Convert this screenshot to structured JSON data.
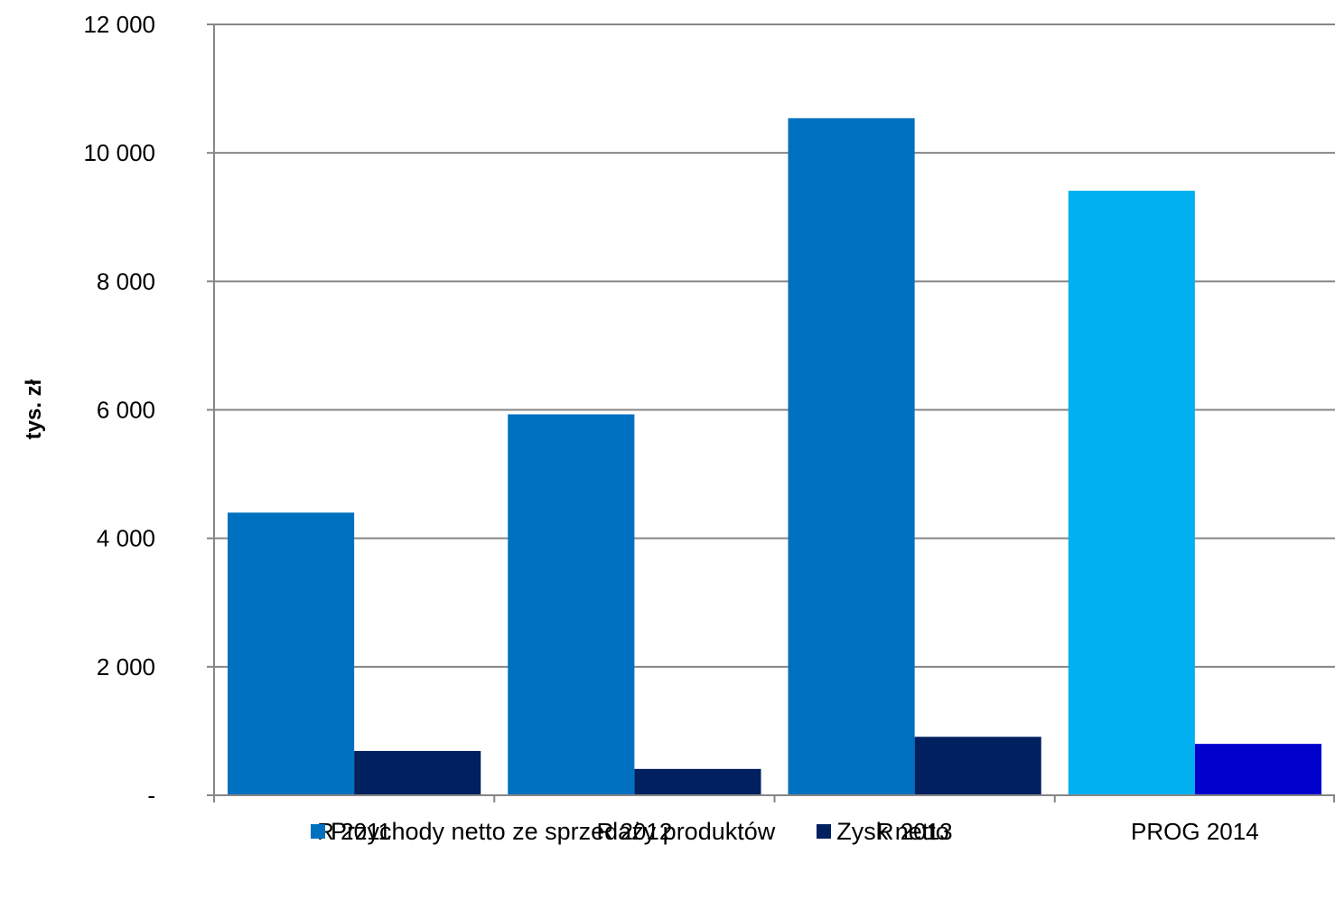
{
  "chart_data": {
    "type": "bar",
    "categories": [
      "R 2011",
      "R 2012",
      "R 2013",
      "PROG 2014"
    ],
    "series": [
      {
        "name": "Przychody netto ze sprzedaży produktów",
        "values": [
          4400,
          5930,
          10540,
          9410
        ],
        "color": "#0070C0",
        "point_colors": [
          "#0070C0",
          "#0070C0",
          "#0070C0",
          "#00B0F0"
        ]
      },
      {
        "name": "Zysk netto",
        "values": [
          690,
          410,
          910,
          800
        ],
        "color": "#002060",
        "point_colors": [
          "#002060",
          "#002060",
          "#002060",
          "#0000CC"
        ]
      }
    ],
    "ylabel": "tys. zł",
    "xlabel": "",
    "ylim": [
      0,
      12000
    ],
    "yticks": [
      0,
      2000,
      4000,
      6000,
      8000,
      10000,
      12000
    ],
    "ytick_labels": [
      "-",
      "2 000",
      "4 000",
      "6 000",
      "8 000",
      "10 000",
      "12 000"
    ],
    "grid": true,
    "legend_position": "bottom"
  }
}
